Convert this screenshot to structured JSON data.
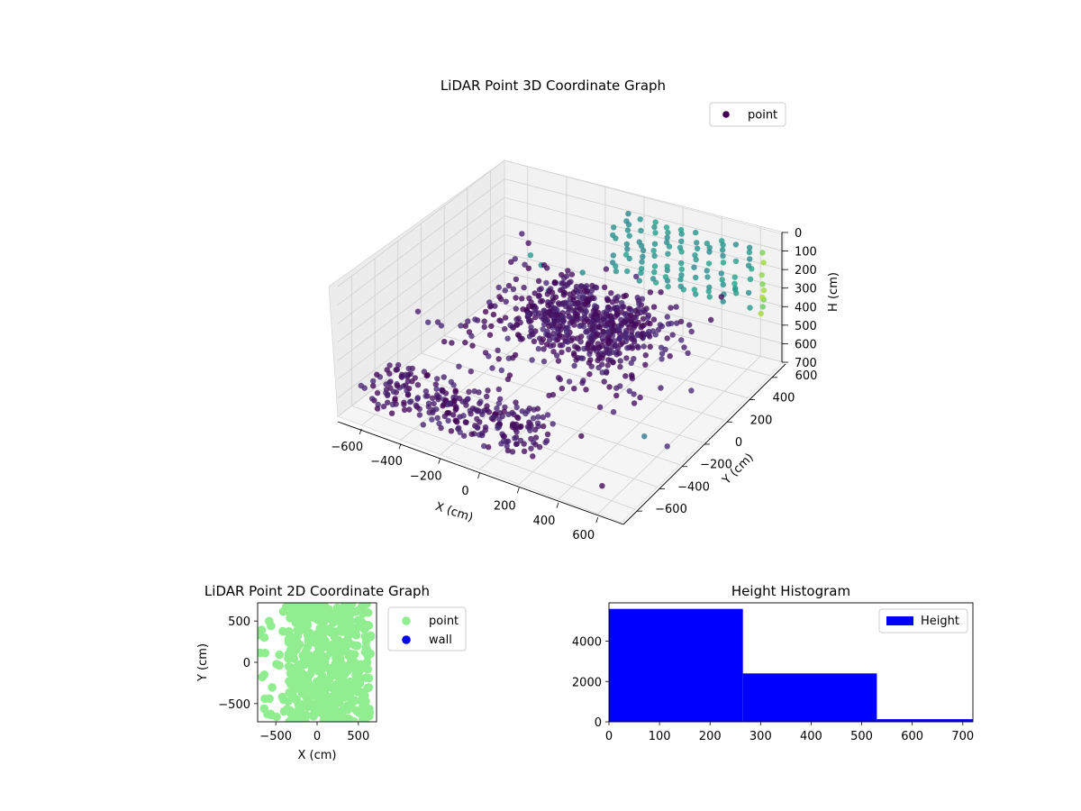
{
  "chart_data": [
    {
      "type": "scatter",
      "projection": "3d",
      "title": "LiDAR Point 3D Coordinate Graph",
      "xlabel": "X (cm)",
      "ylabel": "Y (cm)",
      "zlabel": "H (cm)",
      "xlim": [
        -720,
        720
      ],
      "ylim": [
        -720,
        720
      ],
      "zlim": [
        700,
        0
      ],
      "xticks": [
        "−600",
        "−400",
        "−200",
        "0",
        "200",
        "400",
        "600"
      ],
      "yticks": [
        "−600",
        "−400",
        "−200",
        "0",
        "200",
        "400",
        "600"
      ],
      "zticks": [
        "0",
        "100",
        "200",
        "300",
        "400",
        "500",
        "600",
        "700"
      ],
      "grid": true,
      "legend": {
        "position": "upper-right",
        "entries": [
          {
            "label": "point",
            "color": "#440154"
          }
        ]
      },
      "colormap": "viridis",
      "color_by": "height"
    },
    {
      "type": "scatter",
      "title": "LiDAR Point 2D Coordinate Graph",
      "xlabel": "X (cm)",
      "ylabel": "Y (cm)",
      "xlim": [
        -720,
        720
      ],
      "ylim": [
        -720,
        720
      ],
      "xticks": [
        "−500",
        "0",
        "500"
      ],
      "yticks": [
        "−500",
        "0",
        "500"
      ],
      "legend": {
        "position": "outside-right",
        "entries": [
          {
            "label": "point",
            "color": "#90ee90"
          },
          {
            "label": "wall",
            "color": "#0000ff"
          }
        ]
      },
      "series": [
        {
          "name": "point",
          "color": "#90ee90"
        },
        {
          "name": "wall",
          "color": "#0000ff"
        }
      ]
    },
    {
      "type": "bar",
      "histogram": true,
      "title": "Height Histogram",
      "bin_edges": [
        0,
        265,
        530,
        795
      ],
      "values": [
        5600,
        2400,
        130
      ],
      "xlim": [
        0,
        720
      ],
      "ylim": [
        0,
        5900
      ],
      "xticks": [
        "0",
        "100",
        "200",
        "300",
        "400",
        "500",
        "600",
        "700"
      ],
      "yticks": [
        "0",
        "2000",
        "4000"
      ],
      "legend": {
        "position": "upper-right",
        "entries": [
          {
            "label": "Height",
            "color": "#0000ff"
          }
        ]
      },
      "series": [
        {
          "name": "Height",
          "color": "#0000ff"
        }
      ]
    }
  ]
}
